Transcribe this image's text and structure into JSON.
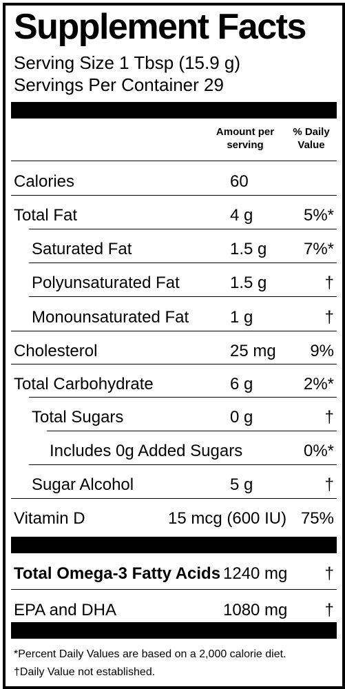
{
  "title": "Supplement Facts",
  "serving_size": "Serving Size 1 Tbsp (15.9 g)",
  "servings_per_container": "Servings Per Container 29",
  "column_headers": {
    "amount": "Amount per serving",
    "daily_value": "% Daily Value"
  },
  "rows": [
    {
      "label": "Calories",
      "amount": "60",
      "dv": ""
    },
    {
      "label": "Total Fat",
      "amount": "4 g",
      "dv": "5%*"
    },
    {
      "label": "Saturated Fat",
      "amount": "1.5 g",
      "dv": "7%*"
    },
    {
      "label": "Polyunsaturated Fat",
      "amount": "1.5 g",
      "dv": "†"
    },
    {
      "label": "Monounsaturated Fat",
      "amount": "1 g",
      "dv": "†"
    },
    {
      "label": "Cholesterol",
      "amount": "25 mg",
      "dv": "9%"
    },
    {
      "label": "Total Carbohydrate",
      "amount": "6 g",
      "dv": "2%*"
    },
    {
      "label": "Total Sugars",
      "amount": "0 g",
      "dv": "†"
    },
    {
      "label": "Includes 0g Added Sugars",
      "amount": "",
      "dv": "0%*"
    },
    {
      "label": "Sugar Alcohol",
      "amount": "5 g",
      "dv": "†"
    },
    {
      "label": "Vitamin D",
      "amount": "15 mcg  (600 IU)",
      "dv": "75%"
    }
  ],
  "omega_rows": [
    {
      "label": "Total Omega-3 Fatty Acids",
      "amount": "1240 mg",
      "dv": "†"
    },
    {
      "label": "EPA and DHA",
      "amount": "1080 mg",
      "dv": "†"
    }
  ],
  "footnotes": [
    "*Percent Daily Values are based on a 2,000 calorie diet.",
    "†Daily Value not established."
  ]
}
